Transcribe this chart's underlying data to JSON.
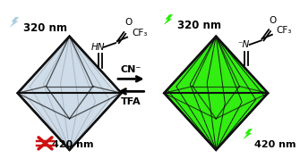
{
  "bg_color": "#ffffff",
  "left_crystal_fill": "#cddce8",
  "left_crystal_edge": "#888899",
  "left_crystal_dark_edge": "#111111",
  "right_crystal_fill": "#33ee11",
  "right_crystal_edge": "#111111",
  "left_lightning_color": "#aaccdd",
  "right_lightning_color": "#22ee00",
  "arrow_color": "#111111",
  "cross_color": "#cc1111",
  "text_320_left": "320 nm",
  "text_320_right": "320 nm",
  "text_420_left": "420 nm",
  "text_420_right": "420 nm",
  "text_cn": "CN⁻",
  "text_tfa": "TFA"
}
